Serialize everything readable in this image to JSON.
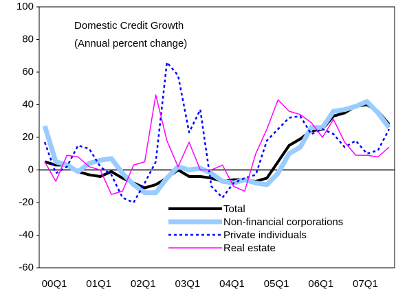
{
  "chart_data": {
    "type": "line",
    "title": "Domestic Credit Growth",
    "subtitle": "(Annual percent change)",
    "categories": [
      "00Q1",
      null,
      null,
      null,
      "01Q1",
      null,
      null,
      null,
      "02Q1",
      null,
      null,
      null,
      "03Q1",
      null,
      null,
      null,
      "04Q1",
      null,
      null,
      null,
      "05Q1",
      null,
      null,
      null,
      "06Q1",
      null,
      null,
      null,
      "07Q1",
      null,
      null,
      null
    ],
    "series": [
      {
        "name": "Total",
        "color": "#000000",
        "width": 4,
        "dash": "solid",
        "values": [
          5,
          3,
          3,
          -1,
          -3,
          -4,
          -1,
          -5,
          -8,
          -11,
          -9,
          -5,
          0,
          -4,
          -4,
          -5,
          -7,
          -6,
          -6,
          -7,
          -5,
          5,
          15,
          19,
          24,
          25,
          33,
          35,
          39,
          40,
          36,
          28
        ]
      },
      {
        "name": "Non-financial corporations",
        "color": "#99ccff",
        "width": 7,
        "dash": "solid",
        "values": [
          27,
          5,
          3,
          -1,
          4,
          6,
          7,
          -2,
          -9,
          -14,
          -14,
          -5,
          2,
          0,
          1,
          -2,
          -7,
          -8,
          -6,
          -8,
          -9,
          -2,
          10,
          14,
          26,
          26,
          36,
          37,
          39,
          42,
          35,
          26
        ]
      },
      {
        "name": "Private individuals",
        "color": "#0000ff",
        "width": 2.5,
        "dash": "dotted",
        "values": [
          17,
          -2,
          2,
          15,
          13,
          2,
          -3,
          -17,
          -20,
          -8,
          5,
          66,
          58,
          23,
          37,
          -10,
          -17,
          -8,
          -5,
          -3,
          18,
          25,
          32,
          33,
          22,
          25,
          22,
          14,
          18,
          10,
          12,
          25
        ]
      },
      {
        "name": "Real estate",
        "color": "#ff00ff",
        "width": 1.5,
        "dash": "solid",
        "values": [
          5,
          -7,
          9,
          8,
          2,
          0,
          -15,
          -13,
          3,
          5,
          46,
          18,
          2,
          17,
          0,
          0,
          3,
          -10,
          -13,
          10,
          25,
          43,
          36,
          34,
          29,
          20,
          31,
          17,
          9,
          9,
          8,
          14
        ]
      }
    ],
    "ylim": [
      -60,
      100
    ],
    "yticks": [
      -60,
      -40,
      -20,
      0,
      20,
      40,
      60,
      80,
      100
    ],
    "legend": "lower-center"
  }
}
